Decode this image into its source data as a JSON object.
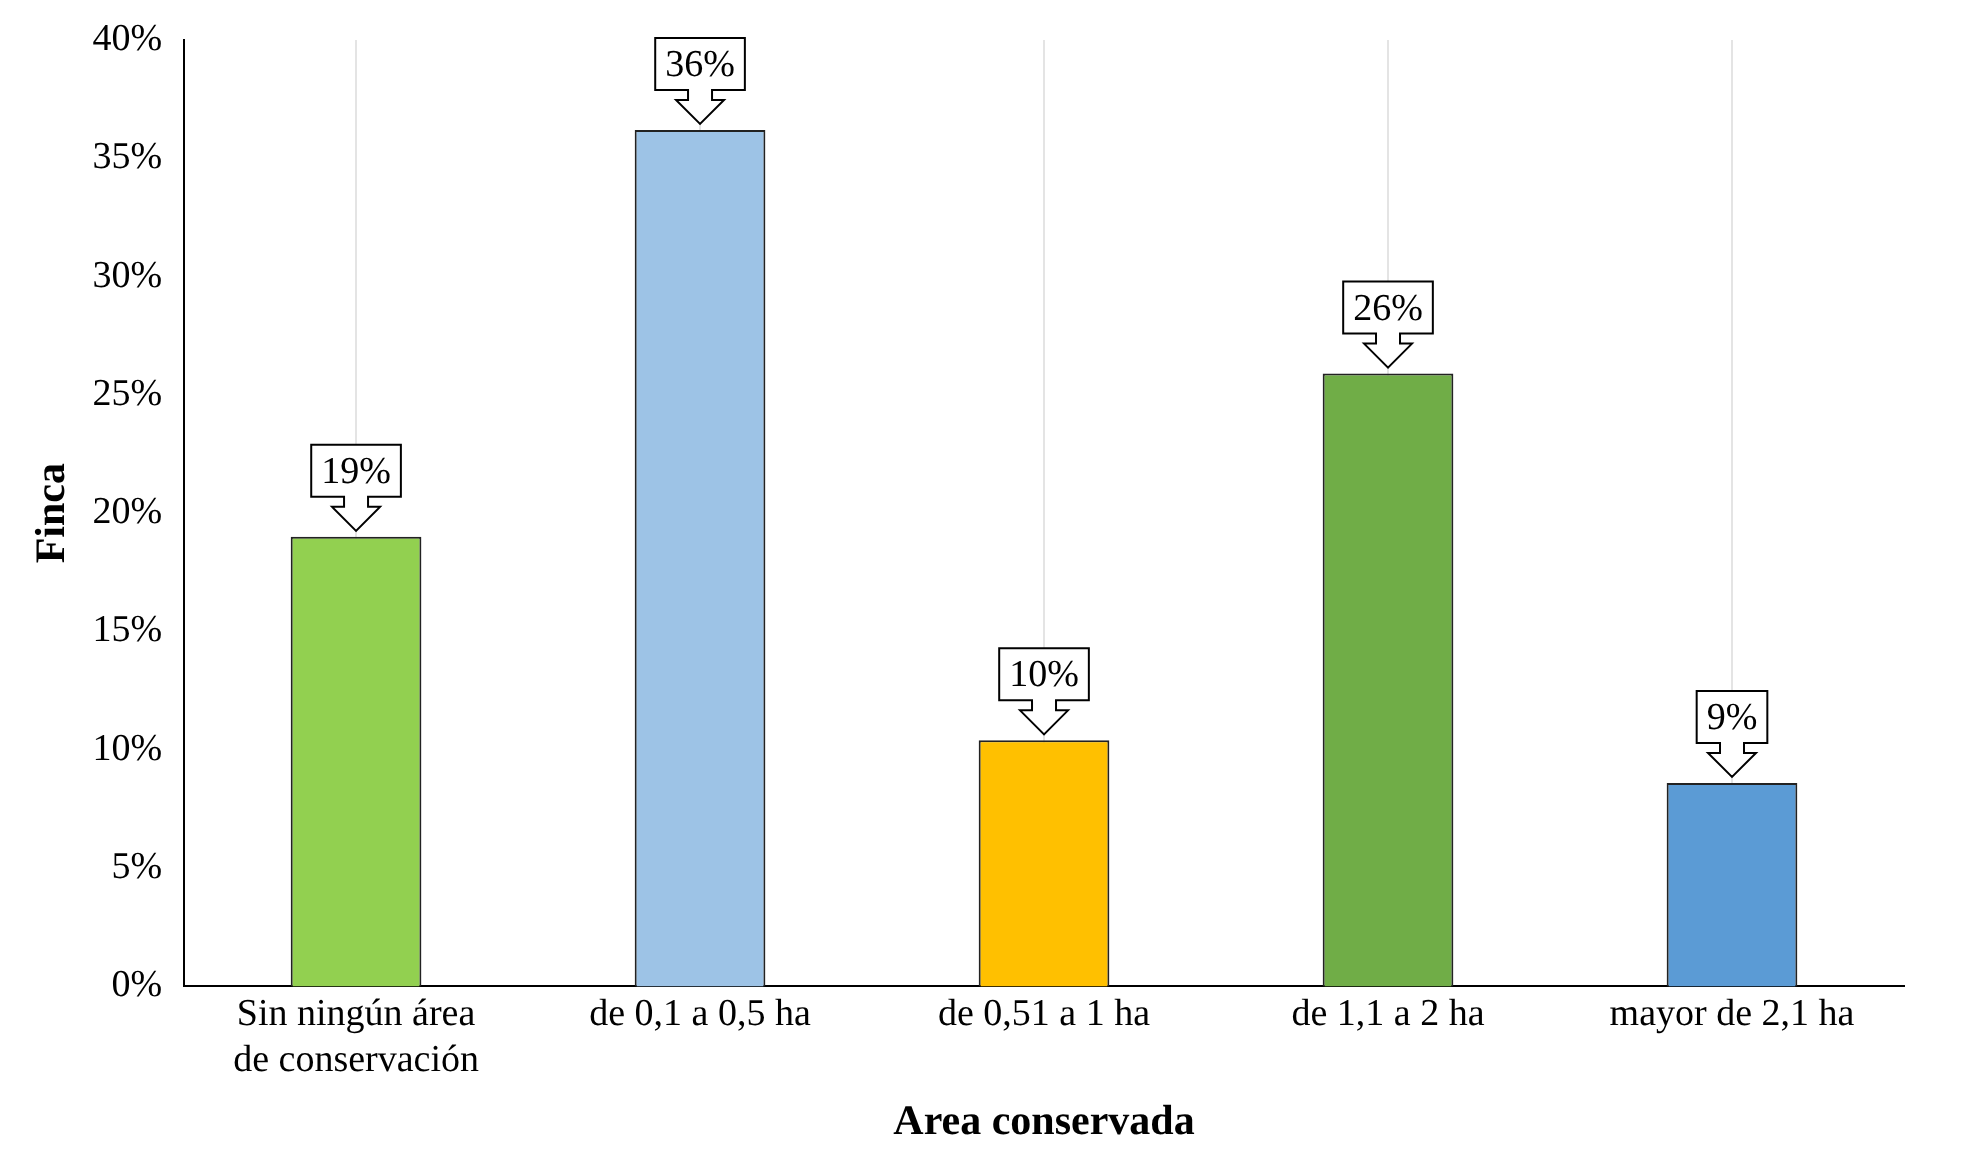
{
  "chart_data": {
    "type": "bar",
    "xlabel": "Area conservada",
    "ylabel": "Finca",
    "categories": [
      "Sin ningún área de conservación",
      "de 0,1 a 0,5 ha",
      "de 0,51 a 1 ha",
      "de 1,1 a 2 ha",
      "mayor de 2,1 ha"
    ],
    "values": [
      19,
      36.2,
      10.4,
      25.9,
      8.6
    ],
    "colors": [
      "#92d050",
      "#9dc3e6",
      "#ffc000",
      "#70ad47",
      "#5b9bd5"
    ],
    "value_labels": [
      "19%",
      "36%",
      "10%",
      "26%",
      "9%"
    ],
    "ylim": [
      0,
      40
    ],
    "yticks": [
      {
        "value": 0,
        "label": "0%"
      },
      {
        "value": 5,
        "label": "5%"
      },
      {
        "value": 10,
        "label": "10%"
      },
      {
        "value": 15,
        "label": "15%"
      },
      {
        "value": 20,
        "label": "20%"
      },
      {
        "value": 25,
        "label": "25%"
      },
      {
        "value": 30,
        "label": "30%"
      },
      {
        "value": 35,
        "label": "35%"
      },
      {
        "value": 40,
        "label": "40%"
      }
    ],
    "grid": "x",
    "legend": false
  }
}
